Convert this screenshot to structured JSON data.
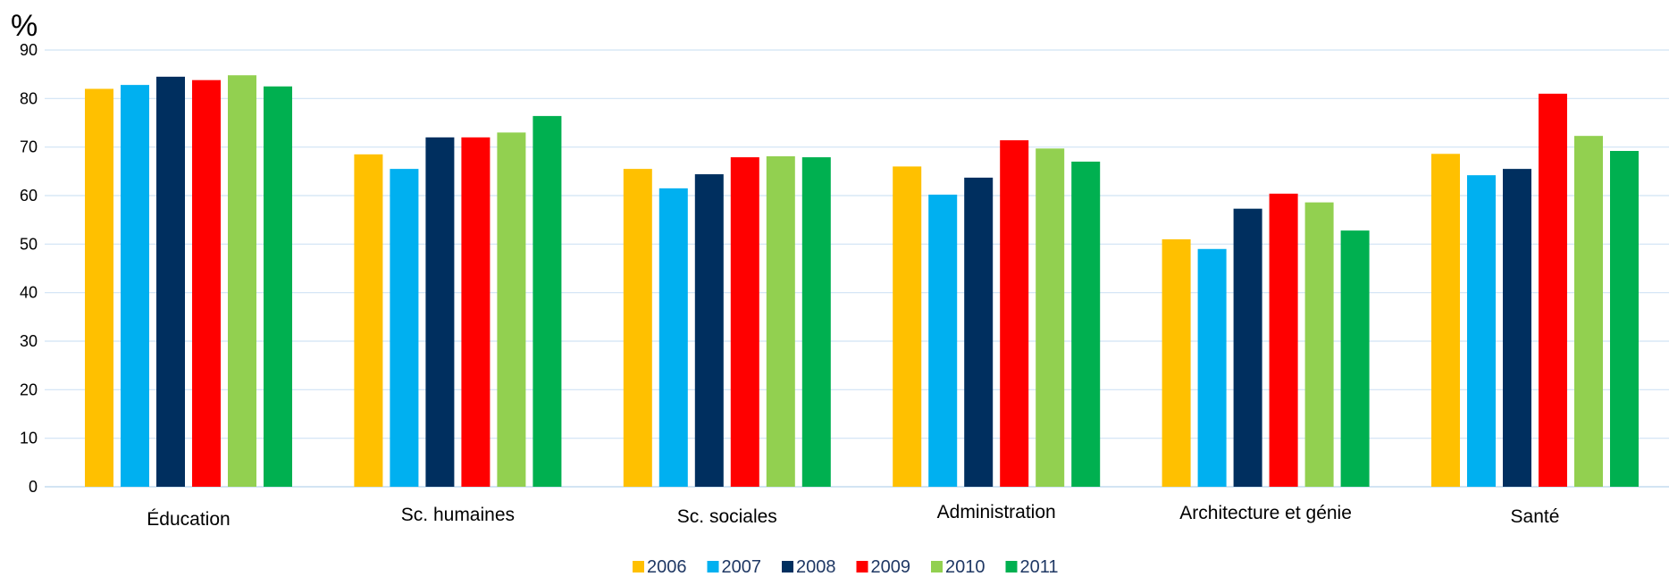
{
  "chart_data": {
    "type": "bar",
    "unit_label": "%",
    "ylim": [
      0,
      90
    ],
    "yticks": [
      0,
      10,
      20,
      30,
      40,
      50,
      60,
      70,
      80,
      90
    ],
    "grid": true,
    "legend_position": "bottom",
    "categories": [
      "Éducation",
      "Sc. humaines",
      "Sc. sociales",
      "Administration",
      "Architecture et génie",
      "Santé"
    ],
    "series": [
      {
        "name": "2006",
        "color": "#FFC000",
        "values": [
          82,
          68.5,
          65.5,
          66,
          51,
          68.6
        ]
      },
      {
        "name": "2007",
        "color": "#00B0F0",
        "values": [
          82.8,
          65.5,
          61.5,
          60.2,
          49,
          64.2
        ]
      },
      {
        "name": "2008",
        "color": "#002F5F",
        "values": [
          84.5,
          72,
          64.4,
          63.7,
          57.3,
          65.5
        ]
      },
      {
        "name": "2009",
        "color": "#FF0000",
        "values": [
          83.8,
          72,
          67.9,
          71.4,
          60.4,
          81
        ]
      },
      {
        "name": "2010",
        "color": "#92D050",
        "values": [
          84.8,
          73,
          68.1,
          69.7,
          58.6,
          72.3
        ]
      },
      {
        "name": "2011",
        "color": "#00B050",
        "values": [
          82.5,
          76.4,
          67.9,
          67,
          52.8,
          69.2
        ]
      }
    ]
  }
}
